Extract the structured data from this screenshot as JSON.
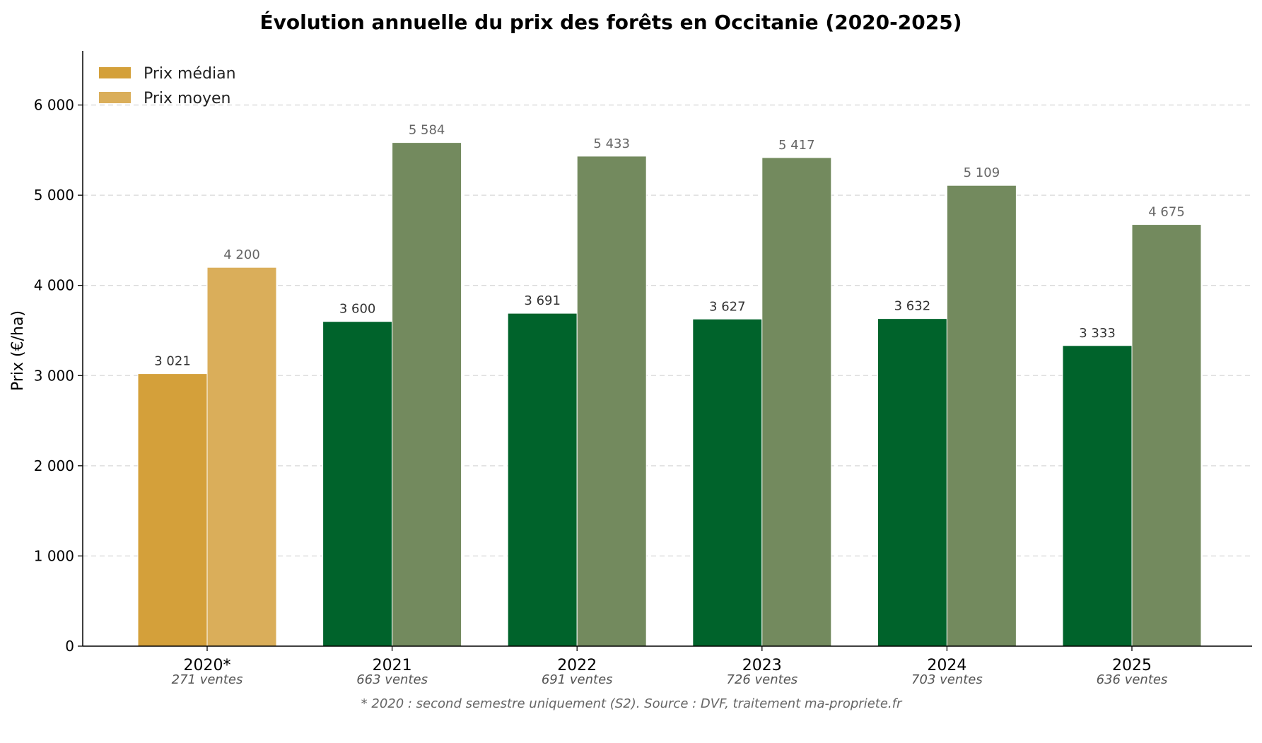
{
  "chart_data": {
    "type": "bar",
    "title": "Évolution annuelle du prix des forêts en Occitanie (2020-2025)",
    "ylabel": "Prix (€/ha)",
    "xlabel": "",
    "ylim": [
      0,
      6600
    ],
    "yticks": [
      {
        "value": 0,
        "label": "0"
      },
      {
        "value": 1000,
        "label": "1 000"
      },
      {
        "value": 2000,
        "label": "2 000"
      },
      {
        "value": 3000,
        "label": "3 000"
      },
      {
        "value": 4000,
        "label": "4 000"
      },
      {
        "value": 5000,
        "label": "5 000"
      },
      {
        "value": 6000,
        "label": "6 000"
      }
    ],
    "grid": "horizontal-dashed",
    "legend_position": "top-left",
    "categories": [
      "2020*",
      "2021",
      "2022",
      "2023",
      "2024",
      "2025"
    ],
    "category_sublabels": [
      "271 ventes",
      "663 ventes",
      "691 ventes",
      "726 ventes",
      "703 ventes",
      "636 ventes"
    ],
    "series": [
      {
        "name": "Prix médian",
        "values": [
          3021,
          3600,
          3691,
          3627,
          3632,
          3333
        ],
        "value_labels": [
          "3 021",
          "3 600",
          "3 691",
          "3 627",
          "3 632",
          "3 333"
        ],
        "color": "#00632B",
        "highlight_color": "#D4A03A",
        "legend_color": "#D4A03A"
      },
      {
        "name": "Prix moyen",
        "values": [
          4200,
          5584,
          5433,
          5417,
          5109,
          4675
        ],
        "value_labels": [
          "4 200",
          "5 584",
          "5 433",
          "5 417",
          "5 109",
          "4 675"
        ],
        "color": "#738A5E",
        "highlight_color": "#DAAE5A",
        "legend_color": "#DAAE5A"
      }
    ],
    "highlight_category_index": 0,
    "footnote": "* 2020 : second semestre uniquement (S2). Source : DVF, traitement ma-propriete.fr"
  }
}
